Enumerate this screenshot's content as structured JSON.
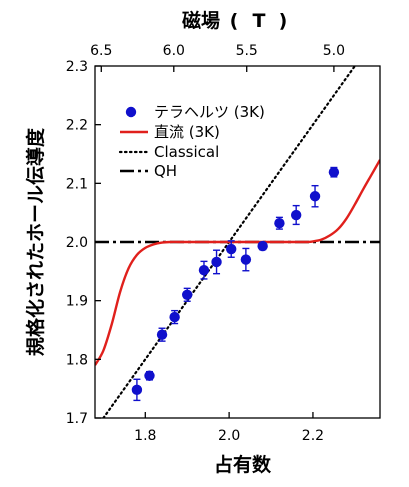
{
  "chart_data": {
    "type": "scatter",
    "xlabel": "占有数",
    "ylabel": "規格化されたホール伝導度",
    "top_axis_label": "磁場 (T)",
    "top_axis_label_parts": [
      "磁場",
      "(",
      "T",
      ")"
    ],
    "xlim": [
      1.68,
      2.36
    ],
    "ylim": [
      1.7,
      2.3
    ],
    "x_ticks": [
      1.8,
      2.0,
      2.2
    ],
    "x_tick_labels": [
      "1.8",
      "2.0",
      "2.2"
    ],
    "y_ticks": [
      1.7,
      1.8,
      1.9,
      2.0,
      2.1,
      2.2,
      2.3
    ],
    "y_tick_labels": [
      "1.7",
      "1.8",
      "1.9",
      "2.0",
      "2.1",
      "2.2",
      "2.3"
    ],
    "top_ticks": [
      {
        "label": "6.5",
        "x": 1.695
      },
      {
        "label": "6.0",
        "x": 1.868
      },
      {
        "label": "5.5",
        "x": 2.042
      },
      {
        "label": "5.0",
        "x": 2.25
      }
    ],
    "grid": false,
    "legend_position": "top-left",
    "series": [
      {
        "name": "テラヘルツ (3K)",
        "kind": "scatter-errorbar",
        "color": "#1010cc",
        "x": [
          1.78,
          1.81,
          1.84,
          1.87,
          1.9,
          1.94,
          1.97,
          2.005,
          2.04,
          2.08,
          2.12,
          2.16,
          2.205,
          2.25
        ],
        "y": [
          1.748,
          1.772,
          1.842,
          1.872,
          1.91,
          1.952,
          1.966,
          1.988,
          1.97,
          1.993,
          2.032,
          2.046,
          2.078,
          2.119
        ],
        "err": [
          0.018,
          0.007,
          0.011,
          0.011,
          0.011,
          0.015,
          0.02,
          0.014,
          0.019,
          0.006,
          0.01,
          0.016,
          0.018,
          0.008
        ]
      },
      {
        "name": "直流 (3K)",
        "kind": "line",
        "color": "#e0201c",
        "x": [
          1.68,
          1.7,
          1.72,
          1.74,
          1.76,
          1.78,
          1.8,
          1.82,
          1.84,
          1.86,
          1.88,
          1.9,
          2.0,
          2.1,
          2.18,
          2.2,
          2.22,
          2.24,
          2.26,
          2.28,
          2.3,
          2.32,
          2.34,
          2.36
        ],
        "y": [
          1.79,
          1.815,
          1.86,
          1.915,
          1.955,
          1.978,
          1.99,
          1.996,
          1.999,
          2.0,
          2.0,
          2.0,
          2.0,
          2.0,
          2.0,
          2.001,
          2.004,
          2.011,
          2.022,
          2.04,
          2.064,
          2.09,
          2.115,
          2.14
        ]
      },
      {
        "name": "Classical",
        "kind": "line",
        "style": "dotted",
        "color": "#000000",
        "x": [
          1.7,
          2.3
        ],
        "y": [
          1.7,
          2.3
        ]
      },
      {
        "name": "QH",
        "kind": "line",
        "style": "dashdot",
        "color": "#000000",
        "x": [
          1.68,
          2.36
        ],
        "y": [
          2.0,
          2.0
        ]
      }
    ]
  }
}
